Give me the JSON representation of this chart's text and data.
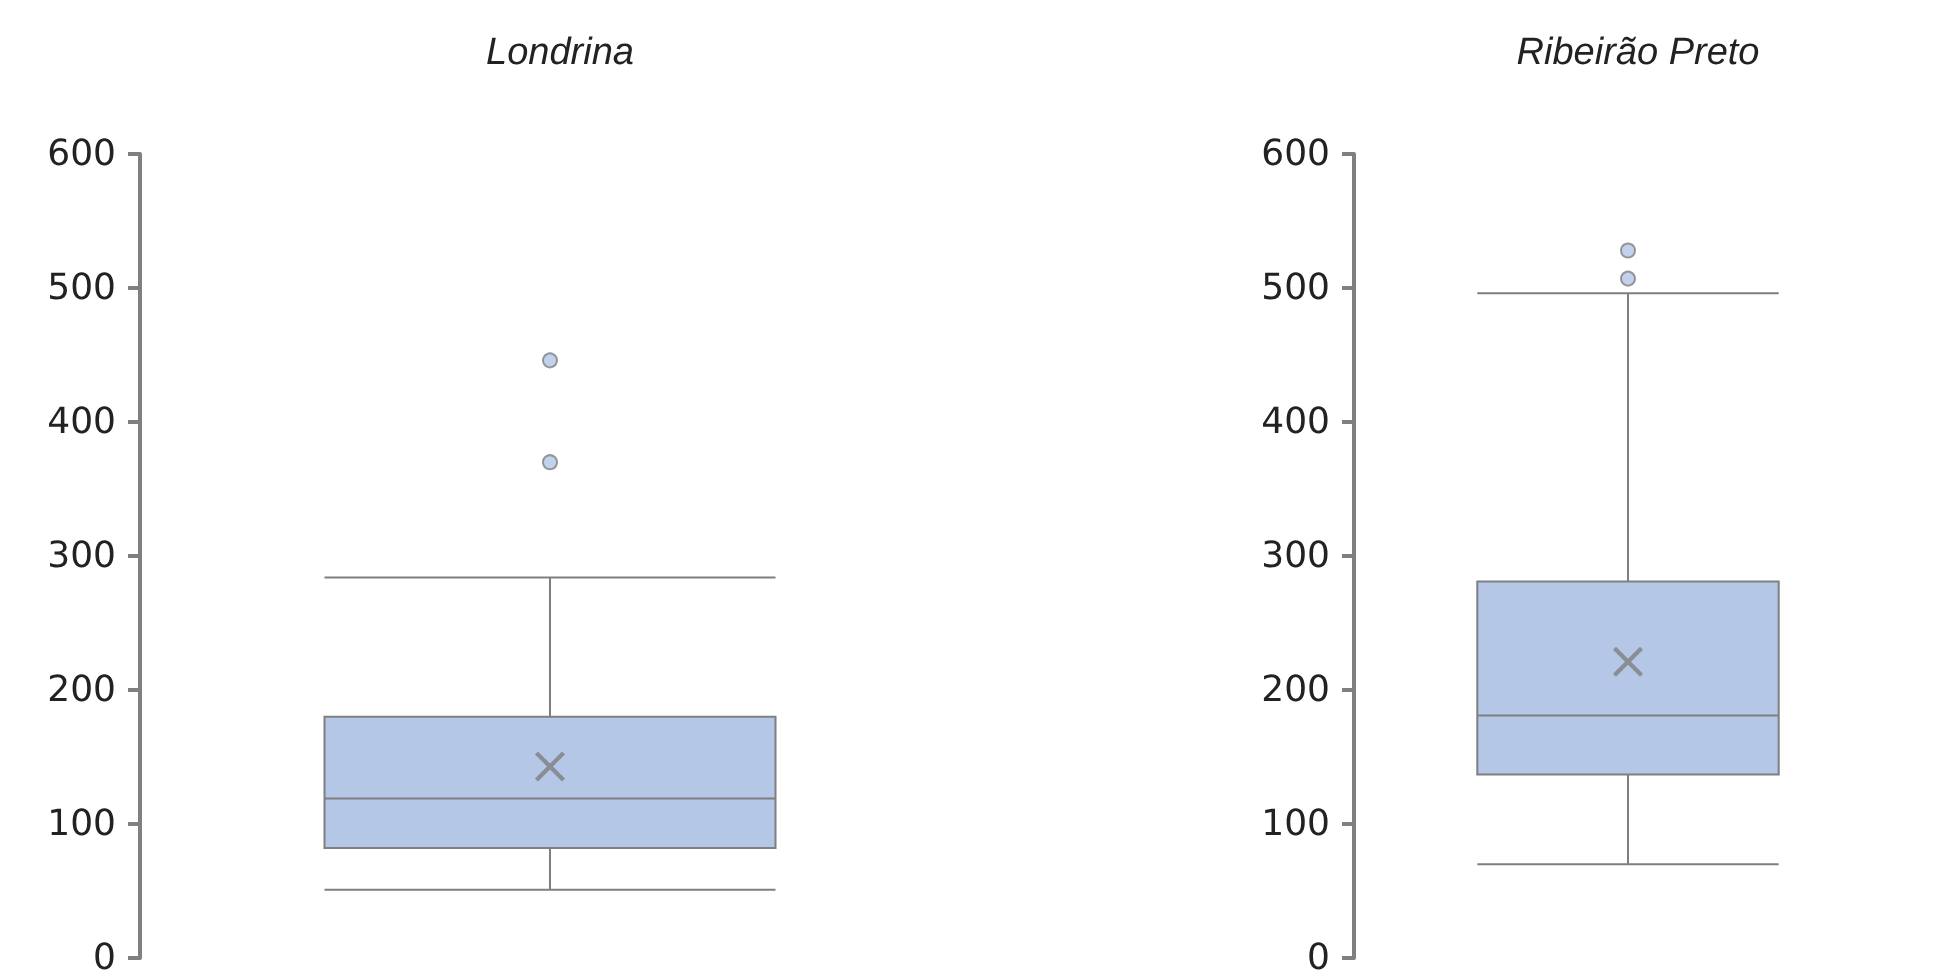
{
  "chart_data": [
    {
      "type": "box",
      "title": "Londrina",
      "categories": [
        null
      ],
      "color": "#b4c7e7",
      "ylim": [
        0,
        600
      ],
      "yticks": [
        0,
        100,
        200,
        300,
        400,
        500,
        600
      ],
      "grid": false,
      "boxes": [
        {
          "low": 51,
          "q1": 82,
          "median": 119,
          "q3": 180,
          "high": 284,
          "mean": 143,
          "outliers": [
            370,
            446
          ]
        }
      ]
    },
    {
      "type": "box",
      "title": "Ribeirão Preto",
      "categories": [
        null
      ],
      "color": "#b4c7e7",
      "ylim": [
        0,
        600
      ],
      "yticks": [
        0,
        100,
        200,
        300,
        400,
        500,
        600
      ],
      "grid": false,
      "boxes": [
        {
          "low": 70,
          "q1": 137,
          "median": 181,
          "q3": 281,
          "high": 496,
          "mean": 221,
          "outliers": [
            507,
            528
          ]
        }
      ]
    }
  ]
}
